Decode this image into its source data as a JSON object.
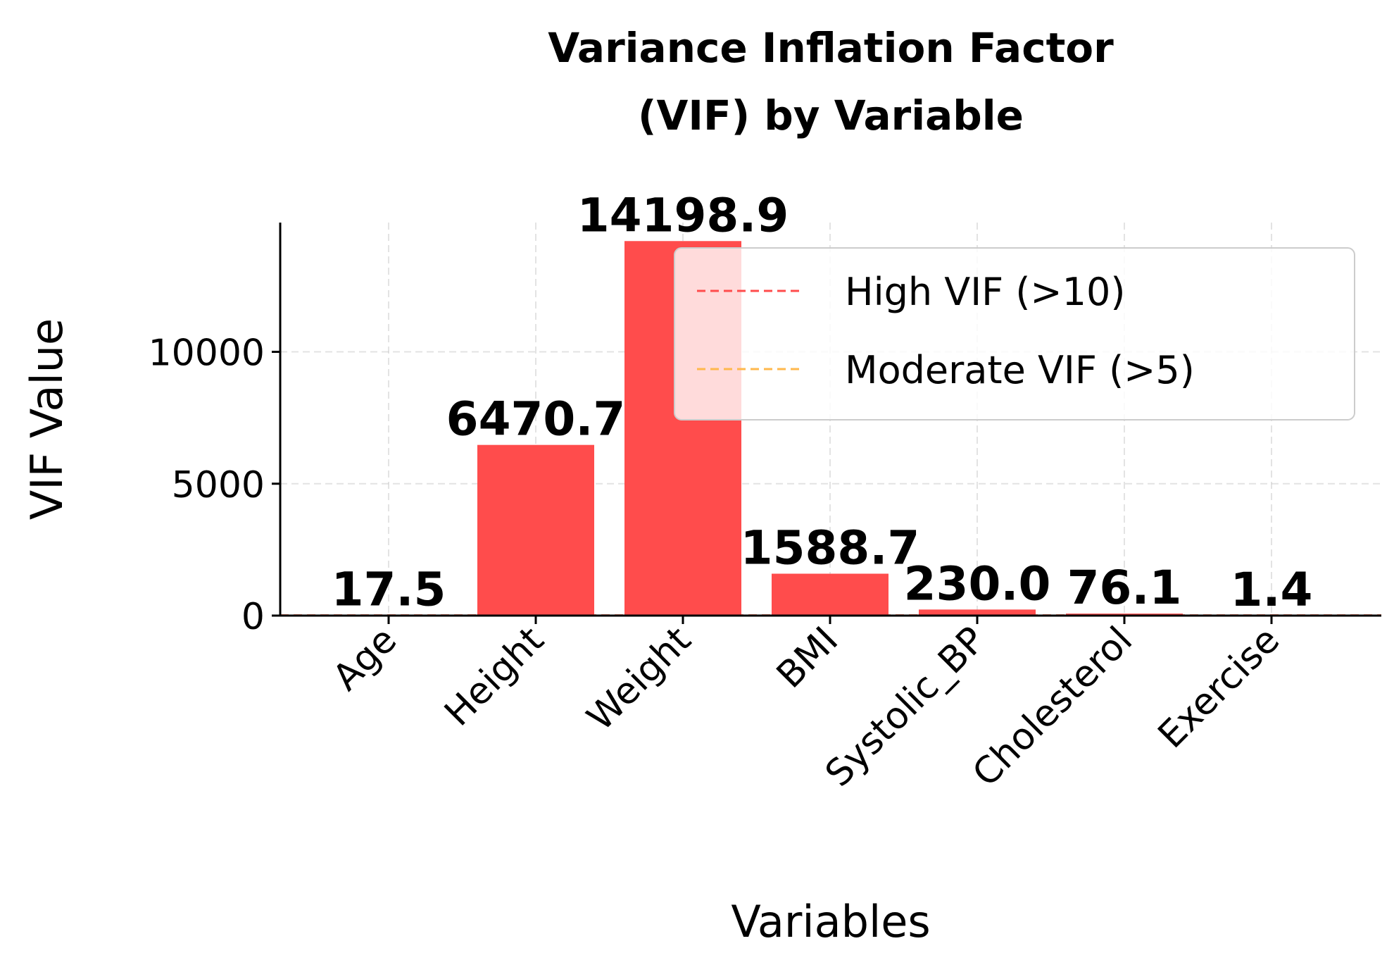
{
  "chart_data": {
    "type": "bar",
    "title_lines": [
      "Variance Inflation Factor",
      "(VIF) by Variable"
    ],
    "xlabel": "Variables",
    "ylabel": "VIF Value",
    "categories": [
      "Age",
      "Height",
      "Weight",
      "BMI",
      "Systolic_BP",
      "Cholesterol",
      "Exercise"
    ],
    "values": [
      17.5,
      6470.7,
      14198.9,
      1588.7,
      230.0,
      76.1,
      1.4
    ],
    "value_labels": [
      "17.5",
      "6470.7",
      "14198.9",
      "1588.7",
      "230.0",
      "76.1",
      "1.4"
    ],
    "yticks": [
      0,
      5000,
      10000
    ],
    "ytick_labels": [
      "0",
      "5000",
      "10000"
    ],
    "ylim": [
      0,
      14900
    ],
    "bar_color": "#ff4c4c",
    "grid": true,
    "reference_lines": [
      {
        "label": "High VIF (>10)",
        "value": 10,
        "color": "#ff4c4c",
        "style": "dashed"
      },
      {
        "label": "Moderate VIF (>5)",
        "value": 5,
        "color": "#ffb84d",
        "style": "dashed"
      }
    ],
    "legend_position": "upper right"
  }
}
